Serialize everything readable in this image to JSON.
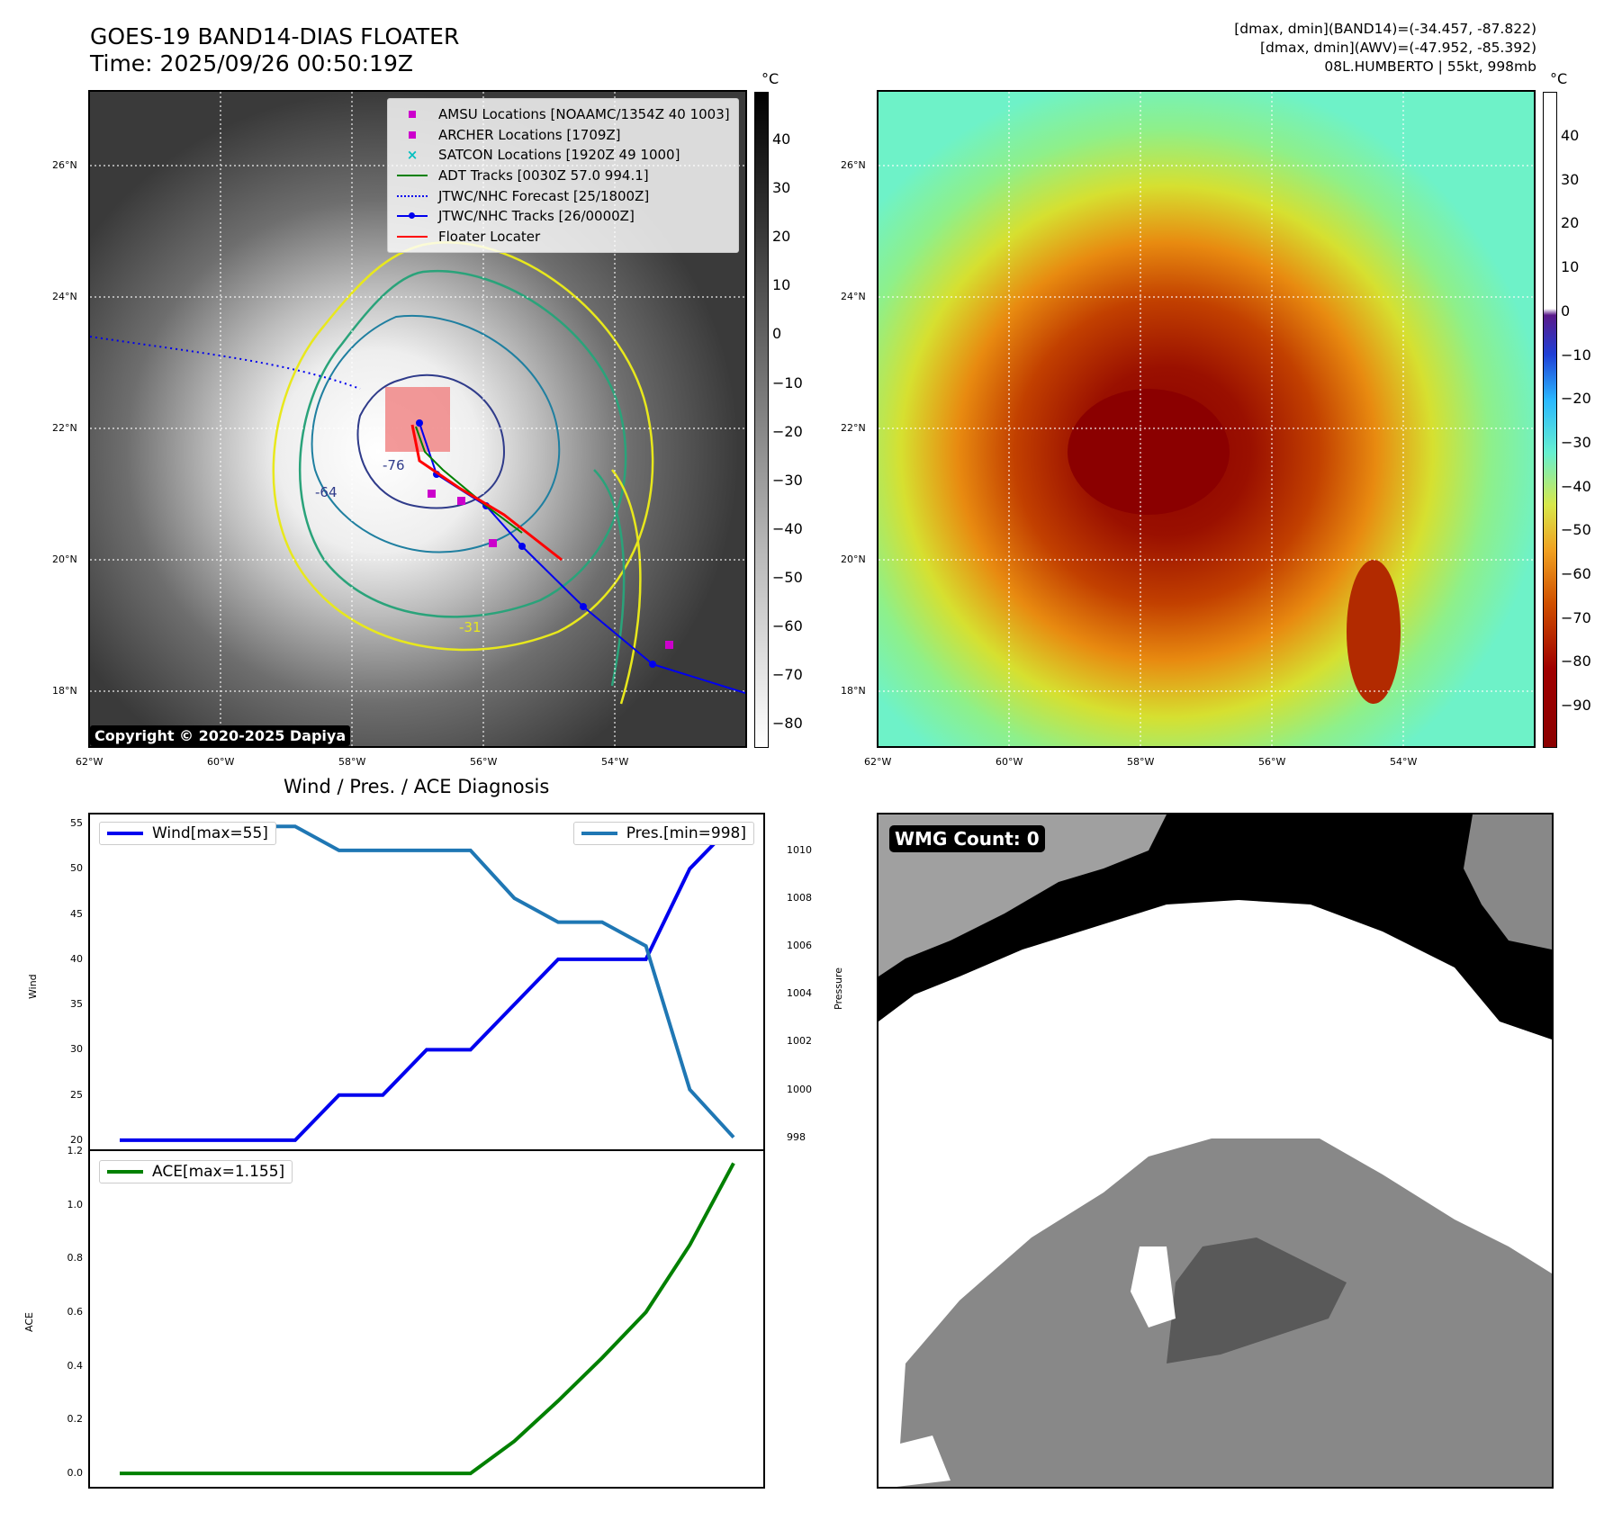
{
  "header": {
    "title_line1": "GOES-19 BAND14-DIAS FLOATER",
    "title_line2": "Time: 2025/09/26 00:50:19Z",
    "right_line1": "[dmax, dmin](BAND14)=(-34.457, -87.822)",
    "right_line2": "[dmax, dmin](AWV)=(-47.952, -85.392)",
    "right_line3": "08L.HUMBERTO | 55kt, 998mb"
  },
  "maps": {
    "lat_labels": [
      "26°N",
      "24°N",
      "22°N",
      "20°N",
      "18°N"
    ],
    "lon_labels": [
      "62°W",
      "60°W",
      "58°W",
      "56°W",
      "54°W"
    ],
    "copyright": "Copyright © 2020-2025 Dapiya",
    "contour_labels": [
      "-64",
      "-76",
      "-31"
    ],
    "colors": {
      "wind_line": "#0000ee",
      "pres_line": "#1f77b4",
      "ace_line": "#008000",
      "floater": "#ff0000",
      "amsu": "#cc00cc",
      "satcon": "#00bfbf"
    }
  },
  "colorbar_left": {
    "unit": "°C",
    "ticks": [
      "40",
      "30",
      "20",
      "10",
      "0",
      "−10",
      "−20",
      "−30",
      "−40",
      "−50",
      "−60",
      "−70",
      "−80"
    ]
  },
  "colorbar_right": {
    "unit": "°C",
    "ticks": [
      "40",
      "30",
      "20",
      "10",
      "0",
      "−10",
      "−20",
      "−30",
      "−40",
      "−50",
      "−60",
      "−70",
      "−80",
      "−90"
    ]
  },
  "map_legend": [
    {
      "label": "AMSU Locations [NOAAMC/1354Z 40 1003]",
      "icon": "magenta-square"
    },
    {
      "label": "ARCHER Locations [1709Z]",
      "icon": "magenta-square"
    },
    {
      "label": "SATCON Locations [1920Z 49 1000]",
      "icon": "cyan-x"
    },
    {
      "label": "ADT Tracks [0030Z 57.0 994.1]",
      "icon": "green-line"
    },
    {
      "label": "JTWC/NHC Forecast [25/1800Z]",
      "icon": "blue-dotted-line"
    },
    {
      "label": "JTWC/NHC Tracks [26/0000Z]",
      "icon": "blue-line-dot"
    },
    {
      "label": "Floater Locater",
      "icon": "red-line"
    }
  ],
  "diag": {
    "title": "Wind / Pres. / ACE Diagnosis",
    "wind_label": "Wind",
    "pres_label": "Pressure",
    "ace_label": "ACE",
    "wind_legend": "Wind[max=55]",
    "pres_legend": "Pres.[min=998]",
    "ace_legend": "ACE[max=1.155]",
    "wind_ticks": [
      "55",
      "50",
      "45",
      "40",
      "35",
      "30",
      "25",
      "20"
    ],
    "pres_ticks": [
      "1010",
      "1008",
      "1006",
      "1004",
      "1002",
      "1000",
      "998"
    ],
    "ace_ticks": [
      "1.2",
      "1.0",
      "0.8",
      "0.6",
      "0.4",
      "0.2",
      "0.0"
    ]
  },
  "wmg": {
    "label": "WMG Count: 0"
  },
  "chart_data": [
    {
      "type": "line",
      "title": "Wind / Pres. / ACE Diagnosis",
      "ylabel": "Wind",
      "ylim": [
        19,
        56
      ],
      "series": [
        {
          "name": "Wind[max=55]",
          "values": [
            20,
            20,
            20,
            20,
            20,
            25,
            25,
            30,
            30,
            35,
            40,
            40,
            40,
            50,
            55
          ]
        }
      ]
    },
    {
      "type": "line",
      "ylabel": "Pressure",
      "ylim": [
        997.5,
        1011.5
      ],
      "series": [
        {
          "name": "Pres.[min=998]",
          "values": [
            1011,
            1011,
            1011,
            1011,
            1011,
            1010,
            1010,
            1010,
            1010,
            1008,
            1007,
            1007,
            1006,
            1000,
            998
          ]
        }
      ]
    },
    {
      "type": "line",
      "ylabel": "ACE",
      "ylim": [
        -0.05,
        1.2
      ],
      "series": [
        {
          "name": "ACE[max=1.155]",
          "values": [
            0,
            0,
            0,
            0,
            0,
            0,
            0,
            0,
            0,
            0.12,
            0.27,
            0.43,
            0.6,
            0.85,
            1.155
          ]
        }
      ]
    }
  ]
}
